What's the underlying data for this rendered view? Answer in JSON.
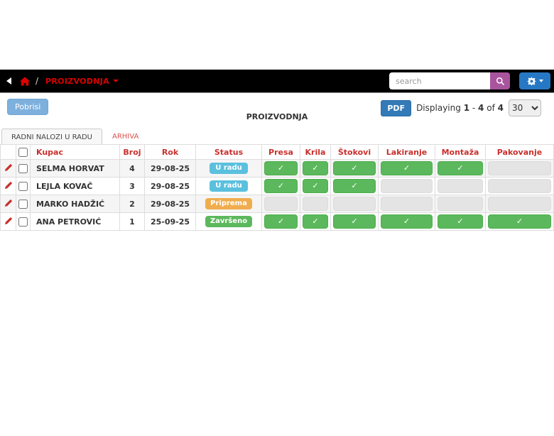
{
  "navbar": {
    "breadcrumb_menu": "PROIZVODNJA",
    "search_placeholder": "search"
  },
  "toolbar": {
    "delete_label": "Pobrisi",
    "pdf_label": "PDF",
    "displaying_word": "Displaying",
    "range_from": "1",
    "range_sep": "-",
    "range_to": "4",
    "of_word": "of",
    "total": "4",
    "page_size_selected": "30"
  },
  "page_title": "PROIZVODNJA",
  "tabs": [
    {
      "label": "RADNI NALOZI U RADU",
      "active": true
    },
    {
      "label": "ARHIVA",
      "active": false
    }
  ],
  "table": {
    "headers": {
      "kupac": "Kupac",
      "broj": "Broj",
      "rok": "Rok",
      "status": "Status",
      "presa": "Presa",
      "krila": "Krila",
      "stokovi": "Štokovi",
      "lakiranje": "Lakiranje",
      "montaza": "Montaža",
      "pakovanje": "Pakovanje"
    },
    "check_glyph": "✓",
    "rows": [
      {
        "kupac": "SELMA HORVAT",
        "broj": "4",
        "rok": "29-08-25",
        "status": {
          "label": "U radu",
          "type": "info"
        },
        "stages": [
          true,
          true,
          true,
          true,
          true,
          false
        ]
      },
      {
        "kupac": "LEJLA KOVAČ",
        "broj": "3",
        "rok": "29-08-25",
        "status": {
          "label": "U radu",
          "type": "info"
        },
        "stages": [
          true,
          true,
          true,
          false,
          false,
          false
        ]
      },
      {
        "kupac": "MARKO HADŽIĆ",
        "broj": "2",
        "rok": "29-08-25",
        "status": {
          "label": "Priprema",
          "type": "warning"
        },
        "stages": [
          false,
          false,
          false,
          false,
          false,
          false
        ]
      },
      {
        "kupac": "ANA PETROVIĆ",
        "broj": "1",
        "rok": "25-09-25",
        "status": {
          "label": "Završeno",
          "type": "success"
        },
        "stages": [
          true,
          true,
          true,
          true,
          true,
          true
        ]
      }
    ]
  },
  "colors": {
    "badge_info": "#5bc0de",
    "badge_warning": "#f0ad4e",
    "badge_success": "#5cb85c",
    "stage_done": "#5cb85c",
    "stage_pending": "#e4e4e4",
    "header_red": "#c9302c",
    "breadcrumb_red": "#dd0000",
    "search_button_purple": "#a9559e",
    "gear_button_blue": "#2778c4",
    "pdf_button_blue": "#337ab7",
    "delete_button_blue": "#7db0dd"
  }
}
